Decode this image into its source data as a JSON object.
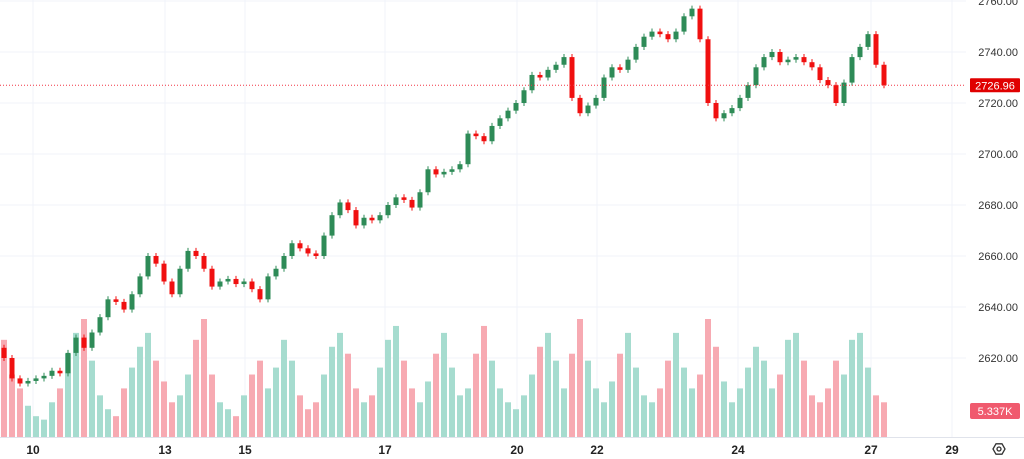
{
  "chart_data": {
    "type": "candlestick",
    "title": "",
    "ylim": [
      2600,
      2760
    ],
    "y_ticks": [
      "2760.00",
      "2740.00",
      "2720.00",
      "2700.00",
      "2680.00",
      "2660.00",
      "2640.00",
      "2620.00"
    ],
    "y_tick_values": [
      2760,
      2740,
      2720,
      2700,
      2680,
      2660,
      2640,
      2620
    ],
    "x_ticks": [
      "10",
      "13",
      "15",
      "17",
      "20",
      "22",
      "24",
      "27",
      "29"
    ],
    "grid": true,
    "last_price": 2726.96,
    "last_price_label": "2726.96",
    "last_volume_label": "5.337K",
    "colors": {
      "up": "#2e8b57",
      "down": "#f01010",
      "volume_up": "#a6dccf",
      "volume_down": "#f7aab2",
      "price_line": "#f23645"
    },
    "open_first": 2624,
    "closes": [
      2620,
      2612,
      2610,
      2611,
      2612,
      2613,
      2615,
      2614,
      2622,
      2628,
      2624,
      2630,
      2636,
      2643,
      2642,
      2639,
      2645,
      2652,
      2660,
      2657,
      2650,
      2645,
      2655,
      2662,
      2660,
      2655,
      2648,
      2650,
      2651,
      2649,
      2650,
      2647,
      2643,
      2652,
      2655,
      2660,
      2665,
      2663,
      2661,
      2660,
      2668,
      2676,
      2681,
      2678,
      2672,
      2675,
      2674,
      2676,
      2680,
      2683,
      2682,
      2679,
      2685,
      2694,
      2692,
      2693,
      2694,
      2696,
      2708,
      2707,
      2705,
      2711,
      2714,
      2717,
      2720,
      2725,
      2731,
      2730,
      2733,
      2735,
      2738,
      2722,
      2716,
      2719,
      2722,
      2730,
      2734,
      2733,
      2737,
      2742,
      2746,
      2748,
      2747,
      2745,
      2748,
      2754,
      2757,
      2745,
      2720,
      2714,
      2716,
      2718,
      2722,
      2727,
      2734,
      2738,
      2740,
      2736,
      2737,
      2738,
      2736,
      2734,
      2729,
      2727,
      2720,
      2728,
      2738,
      2742,
      2747,
      2735,
      2726.96
    ],
    "volumes": [
      28,
      18,
      14,
      9,
      6,
      5,
      10,
      14,
      24,
      30,
      34,
      22,
      12,
      8,
      6,
      14,
      20,
      26,
      30,
      22,
      16,
      10,
      12,
      18,
      28,
      34,
      18,
      10,
      8,
      6,
      12,
      18,
      22,
      14,
      20,
      28,
      22,
      12,
      8,
      10,
      18,
      26,
      30,
      24,
      14,
      10,
      12,
      20,
      28,
      32,
      22,
      14,
      10,
      16,
      24,
      30,
      20,
      12,
      14,
      24,
      32,
      22,
      14,
      10,
      8,
      12,
      18,
      26,
      30,
      22,
      14,
      24,
      34,
      22,
      14,
      10,
      16,
      24,
      30,
      20,
      12,
      10,
      14,
      22,
      30,
      20,
      14,
      18,
      34,
      26,
      16,
      10,
      14,
      20,
      26,
      22,
      14,
      18,
      28,
      30,
      22,
      12,
      10,
      14,
      22,
      18,
      28,
      30,
      20,
      12,
      10
    ]
  }
}
